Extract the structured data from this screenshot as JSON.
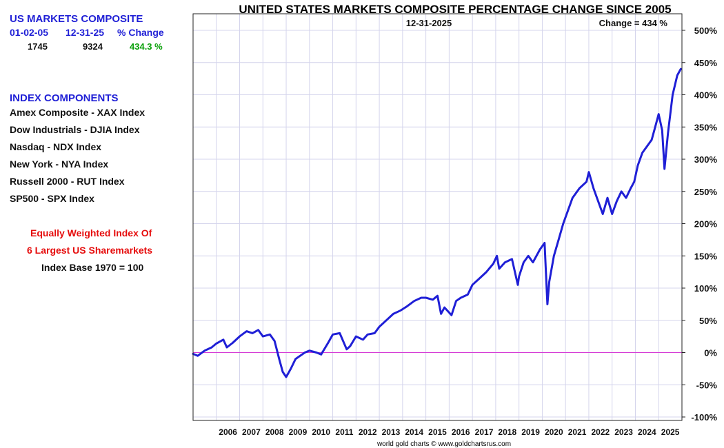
{
  "sidebar": {
    "heading": "US MARKETS COMPOSITE",
    "start_date": "01-02-05",
    "end_date": "12-31-25",
    "change_label": "% Change",
    "start_value": "1745",
    "end_value": "9324",
    "change_value": "434.3 %",
    "components_heading": "INDEX COMPONENTS",
    "components": [
      "Amex Composite - XAX Index",
      "Dow Industrials - DJIA Index",
      "Nasdaq - NDX Index",
      "New York - NYA Index",
      "Russell 2000 - RUT Index",
      "SP500 - SPX Index"
    ],
    "note_line1": "Equally Weighted Index Of",
    "note_line2": "6 Largest US Sharemarkets",
    "base_note": "Index Base 1970 = 100"
  },
  "footer": {
    "credit": "world gold charts © www.goldchartsrus.com"
  },
  "colors": {
    "series": "#1f1fd6",
    "heading": "#1f1fd6",
    "note": "#e60d0d",
    "positive": "#0aa00a",
    "grid": "#d4d4ec",
    "zero_line": "#d63cd6"
  },
  "chart_data": {
    "type": "line",
    "title": "UNITED STATES MARKETS COMPOSITE PERCENTAGE CHANGE SINCE 2005",
    "date_label": "12-31-2025",
    "change_label": "Change = 434 %",
    "xlabel": "",
    "ylabel": "",
    "xlim": [
      2005.0,
      2026.0
    ],
    "ylim": [
      -100,
      500
    ],
    "x_ticks": [
      "2006",
      "2007",
      "2008",
      "2009",
      "2010",
      "2011",
      "2012",
      "2013",
      "2014",
      "2015",
      "2016",
      "2017",
      "2018",
      "2019",
      "2020",
      "2021",
      "2022",
      "2023",
      "2024",
      "2025"
    ],
    "y_ticks": [
      "500%",
      "450%",
      "400%",
      "350%",
      "300%",
      "250%",
      "200%",
      "150%",
      "100%",
      "50%",
      "0%",
      "-50%",
      "-100%"
    ],
    "grid": true,
    "series": [
      {
        "name": "US Markets Composite % change",
        "x": [
          2005.0,
          2005.2,
          2005.5,
          2005.8,
          2006.0,
          2006.3,
          2006.45,
          2006.7,
          2007.0,
          2007.3,
          2007.55,
          2007.8,
          2008.0,
          2008.3,
          2008.5,
          2008.7,
          2008.85,
          2009.0,
          2009.2,
          2009.4,
          2009.6,
          2009.8,
          2010.0,
          2010.3,
          2010.5,
          2010.8,
          2011.0,
          2011.3,
          2011.6,
          2011.75,
          2012.0,
          2012.3,
          2012.5,
          2012.8,
          2013.0,
          2013.3,
          2013.6,
          2013.9,
          2014.2,
          2014.5,
          2014.8,
          2015.0,
          2015.3,
          2015.5,
          2015.65,
          2015.8,
          2016.0,
          2016.1,
          2016.3,
          2016.5,
          2016.8,
          2017.0,
          2017.3,
          2017.6,
          2017.9,
          2018.05,
          2018.15,
          2018.4,
          2018.7,
          2018.95,
          2019.0,
          2019.2,
          2019.4,
          2019.6,
          2019.9,
          2020.1,
          2020.15,
          2020.22,
          2020.3,
          2020.5,
          2020.7,
          2020.9,
          2021.0,
          2021.3,
          2021.6,
          2021.9,
          2022.0,
          2022.2,
          2022.45,
          2022.6,
          2022.8,
          2023.0,
          2023.2,
          2023.4,
          2023.6,
          2023.8,
          2023.95,
          2024.1,
          2024.3,
          2024.5,
          2024.7,
          2024.85,
          2025.0,
          2025.15,
          2025.25,
          2025.4,
          2025.6,
          2025.8,
          2025.95
        ],
        "values": [
          -2,
          -5,
          3,
          8,
          14,
          20,
          8,
          15,
          25,
          33,
          30,
          35,
          25,
          28,
          18,
          -10,
          -30,
          -38,
          -25,
          -10,
          -5,
          0,
          3,
          0,
          -3,
          15,
          28,
          30,
          5,
          10,
          25,
          20,
          28,
          30,
          40,
          50,
          60,
          65,
          72,
          80,
          85,
          85,
          82,
          88,
          60,
          70,
          62,
          58,
          80,
          85,
          90,
          105,
          115,
          125,
          138,
          150,
          130,
          140,
          145,
          105,
          118,
          140,
          150,
          140,
          160,
          170,
          130,
          75,
          110,
          150,
          175,
          200,
          210,
          240,
          255,
          265,
          280,
          255,
          230,
          215,
          240,
          215,
          235,
          250,
          240,
          255,
          265,
          290,
          310,
          320,
          330,
          350,
          370,
          345,
          285,
          340,
          400,
          430,
          440
        ]
      }
    ]
  }
}
